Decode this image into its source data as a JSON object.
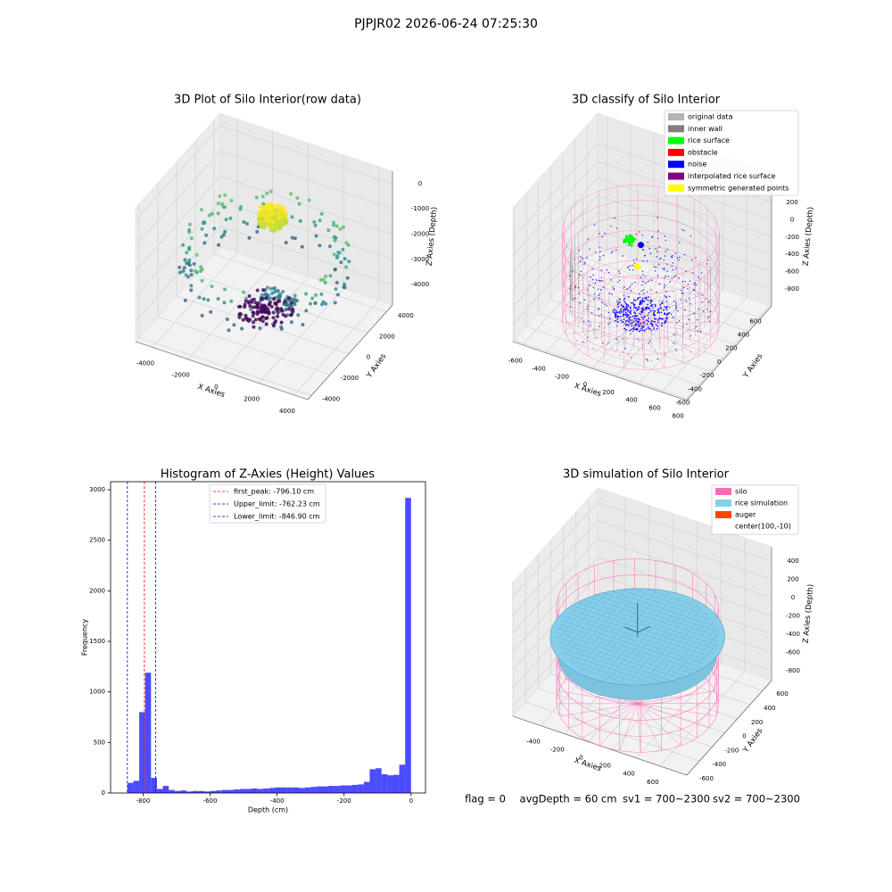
{
  "title": "PJPJR02 2026-06-24 07:25:30",
  "chart_data": [
    {
      "type": "scatter3d",
      "title": "3D Plot of Silo Interior(row data)",
      "xlabel": "X Axies",
      "ylabel": "Y Axies",
      "zlabel": "Z Axies (Depth)",
      "xlim": [
        -4950,
        4760
      ],
      "ylim": [
        -4380,
        4670
      ],
      "zlim": [
        -4812,
        493
      ],
      "xticks": [
        -4000,
        -2000,
        0,
        2000,
        4000
      ],
      "yticks": [
        -4000,
        -2000,
        0,
        2000,
        4000
      ],
      "zticks": [
        0,
        -1000,
        -2000,
        -3000,
        -4000
      ]
    },
    {
      "type": "classify3d",
      "title": "3D classify of Silo Interior",
      "xlabel": "X Axies",
      "ylabel": "Y Axies",
      "zlabel": "Z Axies (Depth)",
      "xlim": [
        -684,
        815
      ],
      "ylim": [
        -620,
        775
      ],
      "zlim": [
        -997,
        551
      ],
      "xticks": [
        -600,
        -400,
        -200,
        0,
        200,
        400,
        600,
        800
      ],
      "yticks": [
        -600,
        -400,
        -200,
        0,
        200,
        400,
        600
      ],
      "zticks": [
        200,
        0,
        -200,
        -400,
        -600,
        -800
      ],
      "legend": [
        {
          "name": "original data",
          "color": "#b3b3b3"
        },
        {
          "name": "inner wall",
          "color": "#808080"
        },
        {
          "name": "rice surface",
          "color": "#00ff00"
        },
        {
          "name": "obstacle",
          "color": "#ff0000"
        },
        {
          "name": "noise",
          "color": "#0000ff"
        },
        {
          "name": "interpolated rice surface",
          "color": "#800080"
        },
        {
          "name": "symmetric generated points",
          "color": "#ffff00"
        }
      ]
    },
    {
      "type": "histogram",
      "title": "Histogram of Z-Axies (Height) Values",
      "xlabel": "Depth (cm)",
      "ylabel": "Frequency",
      "bins": [
        -846.9,
        -829.26,
        -811.61,
        -793.97,
        -776.33,
        -758.68,
        -741.04,
        -723.39,
        -705.75,
        -688.11,
        -670.46,
        -652.82,
        -635.18,
        -617.53,
        -599.89,
        -582.24,
        -564.6,
        -546.96,
        -529.31,
        -511.67,
        -494.03,
        -476.38,
        -458.74,
        -441.09,
        -423.45,
        -405.81,
        -388.16,
        -370.52,
        -352.88,
        -335.23,
        -317.59,
        -299.94,
        -282.3,
        -264.66,
        -247.01,
        -229.37,
        -211.73,
        -194.08,
        -176.44,
        -158.79,
        -141.15,
        -123.51,
        -105.86,
        -88.22,
        -70.58,
        -52.93,
        -35.29,
        -17.64,
        0
      ],
      "values": [
        100,
        120,
        800,
        1190,
        150,
        40,
        70,
        30,
        20,
        25,
        15,
        20,
        20,
        15,
        20,
        25,
        30,
        30,
        35,
        40,
        40,
        45,
        40,
        45,
        50,
        55,
        55,
        55,
        55,
        50,
        55,
        60,
        65,
        65,
        70,
        70,
        75,
        75,
        80,
        85,
        110,
        235,
        245,
        185,
        175,
        180,
        280,
        2920
      ],
      "color": "#0000ff",
      "xlim": [
        -897,
        43
      ],
      "ylim": [
        0,
        3080
      ],
      "xticks": [
        -800,
        -600,
        -400,
        -200,
        0
      ],
      "yticks": [
        0,
        500,
        1000,
        1500,
        2000,
        2500,
        3000
      ],
      "vlines": [
        {
          "name": "first_peak: -796.10 cm",
          "value": -796.1,
          "color": "#ff0000"
        },
        {
          "name": "Upper_limit: -762.23 cm",
          "value": -762.23,
          "color": "#0000ff"
        },
        {
          "name": "Lower_limit: -846.90 cm",
          "value": -846.9,
          "color": "#0000ff"
        }
      ]
    },
    {
      "type": "simulation3d",
      "title": "3D simulation of Silo Interior",
      "xlabel": "X Axies",
      "ylabel": "Y Axies",
      "zlabel": "Z Axies (Depth)",
      "xlim": [
        -631,
        825
      ],
      "ylim": [
        -600,
        741
      ],
      "zlim": [
        -907,
        556
      ],
      "xticks": [
        -400,
        -200,
        0,
        200,
        400,
        600
      ],
      "yticks": [
        -600,
        -400,
        -200,
        0,
        200,
        400,
        600
      ],
      "zticks": [
        400,
        200,
        0,
        -200,
        -400,
        -600,
        -800
      ],
      "legend": [
        {
          "name": "silo",
          "color": "#ff69b4"
        },
        {
          "name": "rice simulation",
          "color": "#87ceeb"
        },
        {
          "name": "auger",
          "color": "#ff4500"
        },
        {
          "name": "center(100,-10)"
        }
      ]
    }
  ],
  "status": [
    "flag = 0",
    "avgDepth = 60 cm",
    "sv1 = 700~2300",
    "sv2 = 700~2300"
  ]
}
